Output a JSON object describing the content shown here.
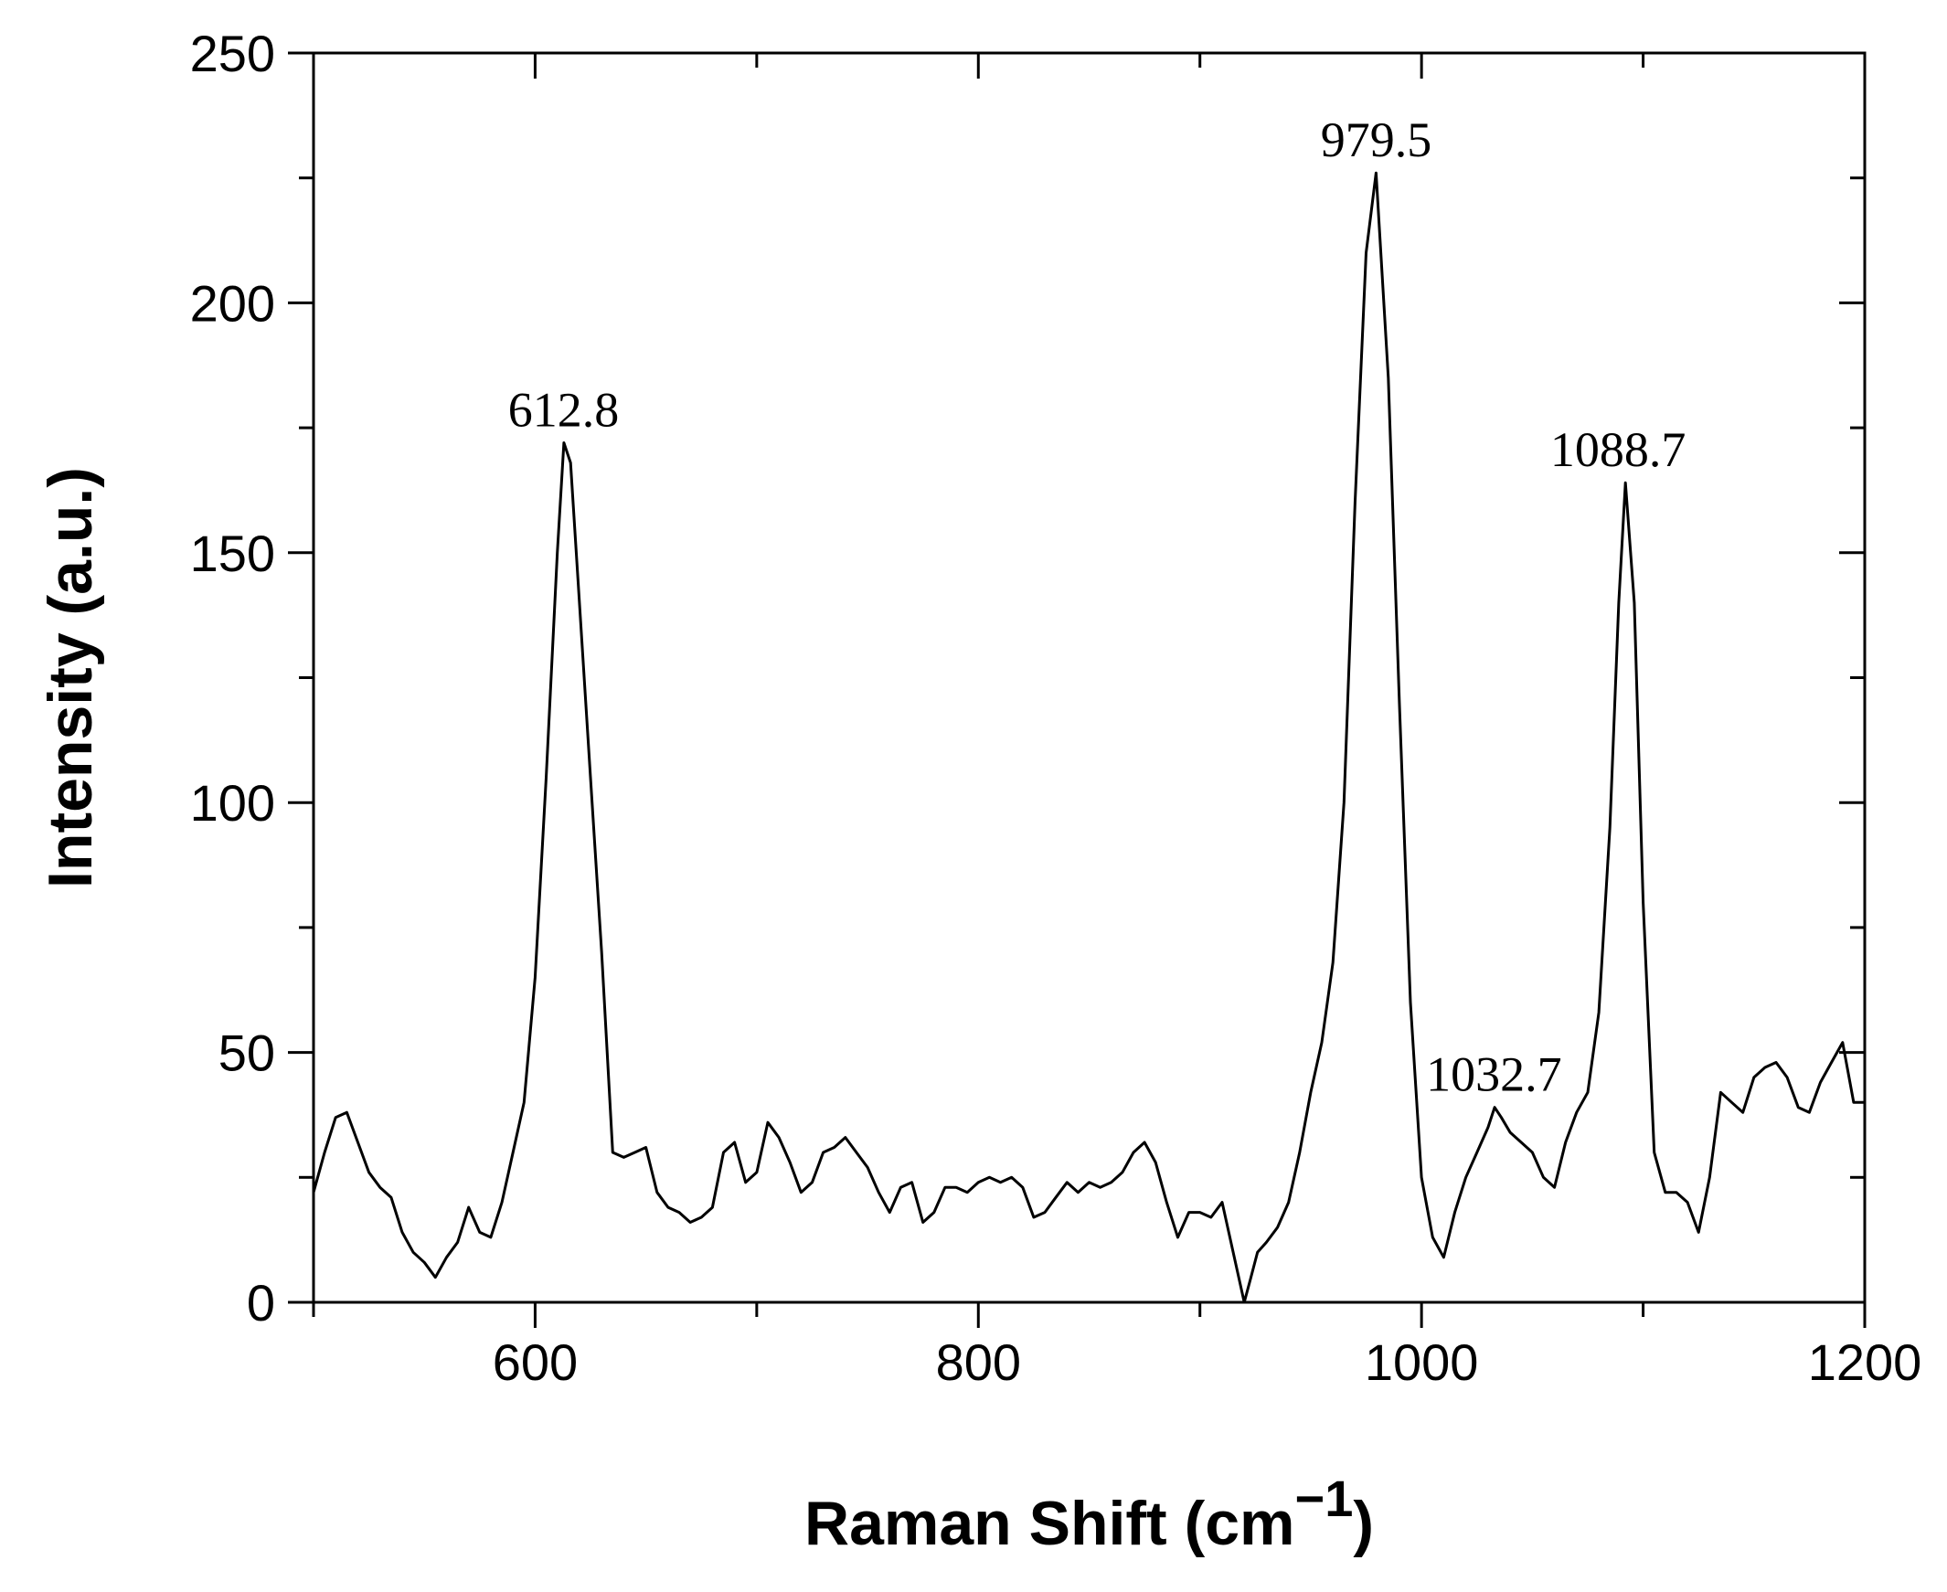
{
  "chart_data": {
    "type": "line",
    "xlabel": "Raman Shift (cm",
    "xlabel_sup": "−1",
    "xlabel_close": ")",
    "ylabel": "Intensity (a.u.)",
    "xlim": [
      500,
      1200
    ],
    "ylim": [
      0,
      250
    ],
    "xticks": [
      600,
      800,
      1000,
      1200
    ],
    "yticks": [
      0,
      50,
      100,
      150,
      200,
      250
    ],
    "grid": false,
    "line_color": "#000000",
    "series": [
      {
        "x": [
          500,
          505,
          510,
          515,
          520,
          525,
          530,
          535,
          540,
          545,
          550,
          555,
          560,
          565,
          570,
          575,
          580,
          585,
          590,
          595,
          600,
          605,
          610,
          613,
          616,
          620,
          625,
          630,
          635,
          640,
          645,
          650,
          655,
          660,
          665,
          670,
          675,
          680,
          685,
          690,
          695,
          700,
          705,
          710,
          715,
          720,
          725,
          730,
          735,
          740,
          745,
          750,
          755,
          760,
          765,
          770,
          775,
          780,
          785,
          790,
          795,
          800,
          805,
          810,
          815,
          820,
          825,
          830,
          835,
          840,
          845,
          850,
          855,
          860,
          865,
          870,
          875,
          880,
          885,
          890,
          895,
          900,
          905,
          910,
          915,
          920,
          923,
          926,
          930,
          935,
          940,
          945,
          950,
          955,
          960,
          965,
          970,
          975,
          979.5,
          985,
          990,
          995,
          1000,
          1005,
          1010,
          1015,
          1020,
          1025,
          1030,
          1033,
          1036,
          1040,
          1045,
          1050,
          1055,
          1060,
          1065,
          1070,
          1075,
          1080,
          1085,
          1089,
          1092,
          1096,
          1100,
          1105,
          1110,
          1115,
          1120,
          1125,
          1130,
          1135,
          1140,
          1145,
          1150,
          1155,
          1160,
          1165,
          1170,
          1175,
          1180,
          1185,
          1190,
          1195,
          1200
        ],
        "y": [
          22,
          30,
          37,
          38,
          32,
          26,
          23,
          21,
          14,
          10,
          8,
          5,
          9,
          12,
          19,
          14,
          13,
          20,
          30,
          40,
          65,
          105,
          150,
          172,
          168,
          140,
          105,
          70,
          30,
          29,
          30,
          31,
          22,
          19,
          18,
          16,
          17,
          19,
          30,
          32,
          24,
          26,
          36,
          33,
          28,
          22,
          24,
          30,
          31,
          33,
          30,
          27,
          22,
          18,
          23,
          24,
          16,
          18,
          23,
          23,
          22,
          24,
          25,
          24,
          25,
          23,
          17,
          18,
          21,
          24,
          22,
          24,
          23,
          24,
          26,
          30,
          32,
          28,
          20,
          13,
          18,
          18,
          17,
          20,
          10,
          0,
          5,
          10,
          12,
          15,
          20,
          30,
          42,
          52,
          68,
          100,
          160,
          210,
          226,
          185,
          120,
          60,
          25,
          13,
          9,
          18,
          25,
          30,
          35,
          39,
          37,
          34,
          32,
          30,
          25,
          23,
          32,
          38,
          42,
          58,
          95,
          140,
          164,
          140,
          80,
          30,
          22,
          22,
          20,
          14,
          25,
          42,
          40,
          38,
          45,
          47,
          48,
          45,
          39,
          38,
          44,
          48,
          52,
          40,
          40
        ]
      }
    ],
    "annotations": [
      {
        "text": "612.8",
        "x": 612.8,
        "y": 172
      },
      {
        "text": "979.5",
        "x": 979.5,
        "y": 226
      },
      {
        "text": "1032.7",
        "x": 1032.7,
        "y": 39
      },
      {
        "text": "1088.7",
        "x": 1088.7,
        "y": 164
      }
    ]
  }
}
